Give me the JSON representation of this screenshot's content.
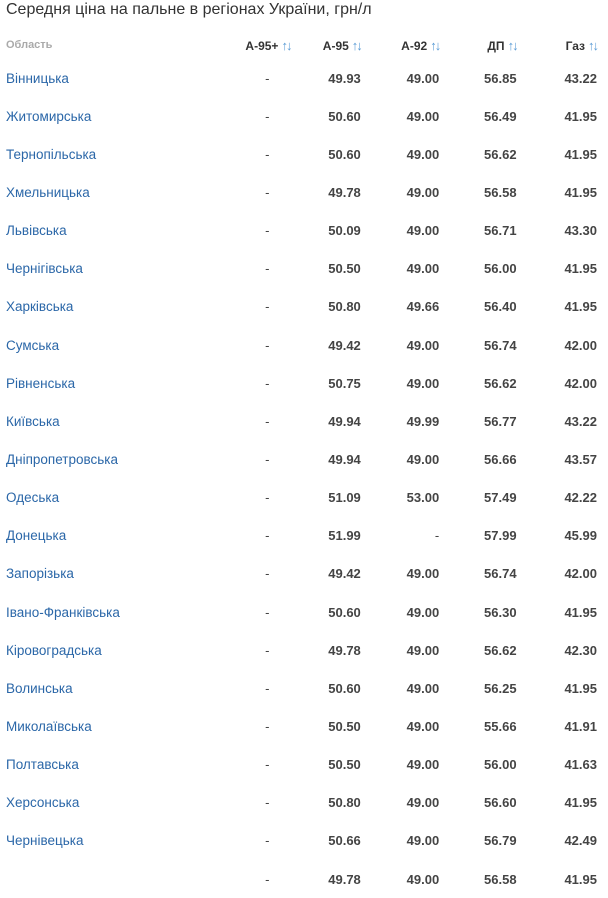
{
  "title": "Середня ціна на пальне в регіонах України, грн/л",
  "columns": {
    "region": "Область",
    "a95p": "А-95+",
    "a95": "А-95",
    "a92": "А-92",
    "dp": "ДП",
    "gas": "Газ"
  },
  "sort_icon": "↑↓",
  "rows": [
    {
      "region": "Вінницька",
      "a95p": "-",
      "a95": "49.93",
      "a92": "49.00",
      "dp": "56.85",
      "gas": "43.22"
    },
    {
      "region": "Житомирська",
      "a95p": "-",
      "a95": "50.60",
      "a92": "49.00",
      "dp": "56.49",
      "gas": "41.95"
    },
    {
      "region": "Тернопільська",
      "a95p": "-",
      "a95": "50.60",
      "a92": "49.00",
      "dp": "56.62",
      "gas": "41.95"
    },
    {
      "region": "Хмельницька",
      "a95p": "-",
      "a95": "49.78",
      "a92": "49.00",
      "dp": "56.58",
      "gas": "41.95"
    },
    {
      "region": "Львівська",
      "a95p": "-",
      "a95": "50.09",
      "a92": "49.00",
      "dp": "56.71",
      "gas": "43.30"
    },
    {
      "region": "Чернігівська",
      "a95p": "-",
      "a95": "50.50",
      "a92": "49.00",
      "dp": "56.00",
      "gas": "41.95"
    },
    {
      "region": "Харківська",
      "a95p": "-",
      "a95": "50.80",
      "a92": "49.66",
      "dp": "56.40",
      "gas": "41.95"
    },
    {
      "region": "Сумська",
      "a95p": "-",
      "a95": "49.42",
      "a92": "49.00",
      "dp": "56.74",
      "gas": "42.00"
    },
    {
      "region": "Рівненська",
      "a95p": "-",
      "a95": "50.75",
      "a92": "49.00",
      "dp": "56.62",
      "gas": "42.00"
    },
    {
      "region": "Київська",
      "a95p": "-",
      "a95": "49.94",
      "a92": "49.99",
      "dp": "56.77",
      "gas": "43.22"
    },
    {
      "region": "Дніпропетровська",
      "a95p": "-",
      "a95": "49.94",
      "a92": "49.00",
      "dp": "56.66",
      "gas": "43.57"
    },
    {
      "region": "Одеська",
      "a95p": "-",
      "a95": "51.09",
      "a92": "53.00",
      "dp": "57.49",
      "gas": "42.22"
    },
    {
      "region": "Донецька",
      "a95p": "-",
      "a95": "51.99",
      "a92": "-",
      "dp": "57.99",
      "gas": "45.99"
    },
    {
      "region": "Запорізька",
      "a95p": "-",
      "a95": "49.42",
      "a92": "49.00",
      "dp": "56.74",
      "gas": "42.00"
    },
    {
      "region": "Івано-Франківська",
      "a95p": "-",
      "a95": "50.60",
      "a92": "49.00",
      "dp": "56.30",
      "gas": "41.95"
    },
    {
      "region": "Кіровоградська",
      "a95p": "-",
      "a95": "49.78",
      "a92": "49.00",
      "dp": "56.62",
      "gas": "42.30"
    },
    {
      "region": "Волинська",
      "a95p": "-",
      "a95": "50.60",
      "a92": "49.00",
      "dp": "56.25",
      "gas": "41.95"
    },
    {
      "region": "Миколаївська",
      "a95p": "-",
      "a95": "50.50",
      "a92": "49.00",
      "dp": "55.66",
      "gas": "41.91"
    },
    {
      "region": "Полтавська",
      "a95p": "-",
      "a95": "50.50",
      "a92": "49.00",
      "dp": "56.00",
      "gas": "41.63"
    },
    {
      "region": "Херсонська",
      "a95p": "-",
      "a95": "50.80",
      "a92": "49.00",
      "dp": "56.60",
      "gas": "41.95"
    },
    {
      "region": "Чернівецька",
      "a95p": "-",
      "a95": "50.66",
      "a92": "49.00",
      "dp": "56.79",
      "gas": "42.49"
    },
    {
      "region": "",
      "a95p": "-",
      "a95": "49.78",
      "a92": "49.00",
      "dp": "56.58",
      "gas": "41.95"
    }
  ]
}
